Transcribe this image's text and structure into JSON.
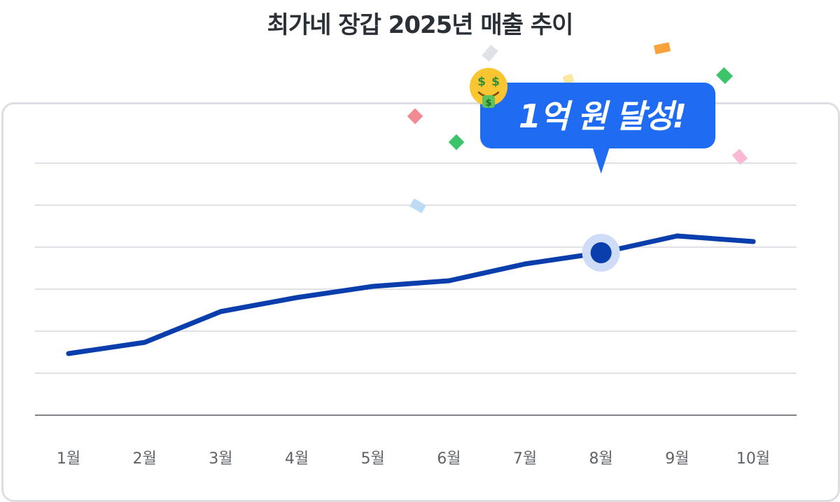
{
  "chart_data": {
    "type": "line",
    "title": "최가네 장갑 2025년 매출 추이",
    "categories": [
      "1월",
      "2월",
      "3월",
      "4월",
      "5월",
      "6월",
      "7월",
      "8월",
      "9월",
      "10월"
    ],
    "series": [
      {
        "values": [
          2.2,
          2.6,
          3.7,
          4.2,
          4.6,
          4.8,
          5.4,
          5.8,
          6.4,
          6.2
        ]
      }
    ],
    "ylim": [
      0,
      9
    ],
    "grid": true,
    "ytick_labels": false,
    "line_color": "#0a3eac",
    "highlight": {
      "category": "8월",
      "callout": "1억 원 달성!",
      "callout_color": "#1f6bf2",
      "emoji": "🤑"
    }
  }
}
